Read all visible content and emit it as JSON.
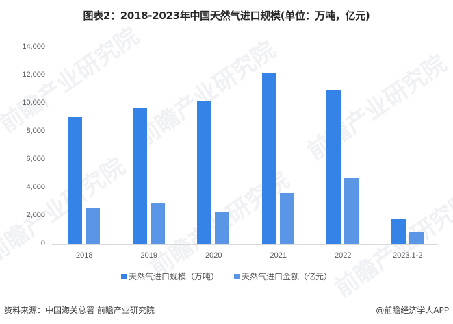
{
  "title": "图表2：2018-2023年中国天然气进口规模(单位：万吨，亿元)",
  "chart_data": {
    "type": "bar",
    "title": "图表2：2018-2023年中国天然气进口规模(单位：万吨，亿元)",
    "categories": [
      "2018",
      "2019",
      "2020",
      "2021",
      "2022",
      "2023.1-2"
    ],
    "series": [
      {
        "name": "天然气进口规模（万吨）",
        "color": "#3583e6",
        "values": [
          9039,
          9656,
          10166,
          12136,
          10925,
          1800
        ]
      },
      {
        "name": "天然气进口金额（亿元）",
        "color": "#5b96e6",
        "values": [
          2540,
          2880,
          2315,
          3600,
          4680,
          830
        ]
      }
    ],
    "xlabel": "",
    "ylabel": "",
    "ylim": [
      0,
      14000
    ],
    "yticks": [
      "0",
      "2,000",
      "4,000",
      "6,000",
      "8,000",
      "10,000",
      "12,000",
      "14,000"
    ],
    "grid": false,
    "legend_position": "bottom"
  },
  "legend": [
    {
      "label": "天然气进口规模（万吨）",
      "color": "#3583e6"
    },
    {
      "label": "天然气进口金额（亿元）",
      "color": "#5b96e6"
    }
  ],
  "footer": {
    "source": "资料来源：中国海关总署 前瞻产业研究院",
    "credit": "@前瞻经济学人APP"
  },
  "watermark": "前瞻产业研究院"
}
